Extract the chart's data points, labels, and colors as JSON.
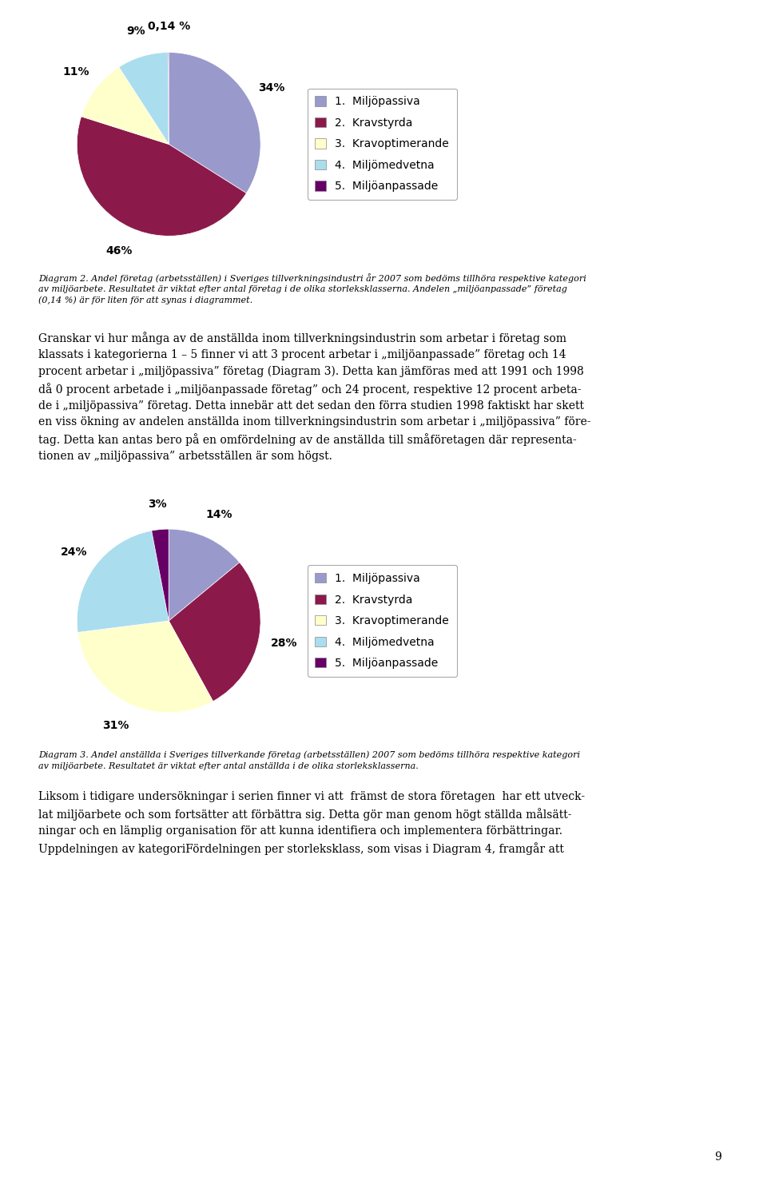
{
  "pie1": {
    "values": [
      34,
      46,
      11,
      9,
      0.14
    ],
    "labels": [
      "34%",
      "46%",
      "11%",
      "9%",
      "0,14 %"
    ],
    "colors": [
      "#9999CC",
      "#8B1A4A",
      "#FFFFCC",
      "#AADDEE",
      "#660066"
    ],
    "legend_labels": [
      "1.  Miljöpassiva",
      "2.  Kravstyrda",
      "3.  Kravoptimerande",
      "4.  Miljömedvetna",
      "5.  Miljöanpassade"
    ],
    "startangle": 90
  },
  "pie2": {
    "values": [
      14,
      28,
      31,
      24,
      3
    ],
    "labels": [
      "14%",
      "28%",
      "31%",
      "24%",
      "3%"
    ],
    "colors": [
      "#9999CC",
      "#8B1A4A",
      "#FFFFCC",
      "#AADDEE",
      "#660066"
    ],
    "legend_labels": [
      "1.  Miljöpassiva",
      "2.  Kravstyrda",
      "3.  Kravoptimerande",
      "4.  Miljömedvetna",
      "5.  Miljöanpassade"
    ],
    "startangle": 90
  },
  "caption1": "Diagram 2. Andel företag (arbetsställen) i Sveriges tillverkningsindustri år 2007 som bedöms tillhöra respektive kategori\nav miljöarbete. Resultatet är viktat efter antal företag i de olika storleksklasserna. Andelen „miljöanpassade” företag\n(0,14 %) är för liten för att synas i diagrammet.",
  "caption2": "Diagram 3. Andel anställda i Sveriges tillverkande företag (arbetsställen) 2007 som bedöms tillhöra respektive kategori\nav miljöarbete. Resultatet är viktat efter antal anställda i de olika storleksklasserna.",
  "body_text1": "Granskar vi hur många av de anställda inom tillverkningsindustrin som arbetar i företag som\nklassats i kategorierna 1 – 5 finner vi att 3 procent arbetar i „miljöanpassade” företag och 14\nprocent arbetar i „miljöpassiva” företag (Diagram 3). Detta kan jämföras med att 1991 och 1998\ndå 0 procent arbetade i „miljöanpassade företag” och 24 procent, respektive 12 procent arbeta-\nde i „miljöpassiva” företag. Detta innebär att det sedan den förra studien 1998 faktiskt har skett\nen viss ökning av andelen anställda inom tillverkningsindustrin som arbetar i „miljöpassiva” före-\ntag. Detta kan antas bero på en omfördelning av de anställda till småföretagen där representa-\ntionen av „miljöpassiva” arbetsställen är som högst.",
  "body_text2": "Liksom i tidigare undersökningar i serien finner vi att  främst de stora företagen  har ett utveck-\nlat miljöarbete och som fortsätter att förbättra sig. Detta gör man genom högt ställda målsätt-\nningar och en lämplig organisation för att kunna identifiera och implementera förbättringar.\nUppdelningen av kategoriFördelningen per storleksklass, som visas i Diagram 4, framgår att",
  "page_number": "9",
  "background_color": "#FFFFFF",
  "label_fontsize": 10,
  "legend_fontsize": 10,
  "caption_fontsize": 8,
  "body_fontsize": 10
}
